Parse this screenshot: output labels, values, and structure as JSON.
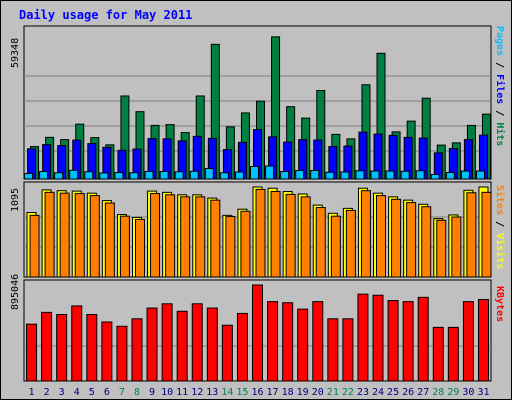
{
  "title": "Daily usage for May 2011",
  "chart_data": [
    {
      "type": "bar",
      "panel": "pages-files-hits",
      "ymax_label": "59348",
      "ylim": [
        0,
        59348
      ],
      "x": [
        "1",
        "2",
        "3",
        "4",
        "5",
        "6",
        "7",
        "8",
        "9",
        "10",
        "11",
        "12",
        "13",
        "14",
        "15",
        "16",
        "17",
        "18",
        "19",
        "20",
        "21",
        "22",
        "23",
        "24",
        "25",
        "26",
        "27",
        "28",
        "29",
        "30",
        "31"
      ],
      "weekend_days": [
        "7",
        "8",
        "14",
        "15",
        "21",
        "22",
        "28",
        "29"
      ],
      "axis_label": [
        "Pages",
        "Files",
        "Hits"
      ],
      "colors": {
        "Hits": "#008040",
        "Files": "#0000ff",
        "Pages": "#00c0ff"
      },
      "series": [
        {
          "name": "Hits",
          "values": [
            13000,
            16700,
            15800,
            22000,
            16600,
            13700,
            33300,
            27000,
            21500,
            21800,
            18600,
            33300,
            54000,
            20900,
            26500,
            31200,
            57000,
            29000,
            24400,
            35500,
            17900,
            16100,
            37800,
            50400,
            18900,
            23200,
            32400,
            13600,
            14500,
            21500,
            26000
          ]
        },
        {
          "name": "Files",
          "values": [
            12100,
            13800,
            13400,
            15600,
            14200,
            12700,
            11500,
            12000,
            16200,
            16100,
            15300,
            17100,
            16300,
            11800,
            14700,
            19800,
            16900,
            14800,
            15800,
            15600,
            13000,
            13200,
            18800,
            18000,
            17500,
            16700,
            16400,
            10500,
            12200,
            15800,
            17600
          ]
        },
        {
          "name": "Pages",
          "values": [
            2200,
            3000,
            2500,
            3500,
            2900,
            2400,
            2600,
            2500,
            3000,
            3000,
            2900,
            3100,
            4200,
            2500,
            2800,
            5000,
            5200,
            3000,
            3400,
            3400,
            2700,
            2800,
            3300,
            3200,
            3200,
            3100,
            3300,
            1800,
            2600,
            3200,
            3200
          ]
        }
      ]
    },
    {
      "type": "bar",
      "panel": "visits-sites",
      "ymax_label": "1095",
      "ylim": [
        0,
        1095
      ],
      "x": [
        "1",
        "2",
        "3",
        "4",
        "5",
        "6",
        "7",
        "8",
        "9",
        "10",
        "11",
        "12",
        "13",
        "14",
        "15",
        "16",
        "17",
        "18",
        "19",
        "20",
        "21",
        "22",
        "23",
        "24",
        "25",
        "26",
        "27",
        "28",
        "29",
        "30",
        "31"
      ],
      "axis_label": [
        "Sites",
        "Visits"
      ],
      "colors": {
        "Visits": "#ffff00",
        "Sites": "#ff8000"
      },
      "series": [
        {
          "name": "Visits",
          "values": [
            785,
            1060,
            1050,
            1045,
            1020,
            930,
            760,
            725,
            1045,
            1030,
            1000,
            1000,
            960,
            750,
            825,
            1095,
            1080,
            1040,
            1010,
            875,
            775,
            835,
            1080,
            1020,
            975,
            935,
            885,
            710,
            755,
            1055,
            1095
          ]
        },
        {
          "name": "Sites",
          "values": [
            750,
            1030,
            1020,
            1015,
            990,
            900,
            740,
            700,
            1015,
            1000,
            975,
            975,
            935,
            735,
            800,
            1065,
            1040,
            1005,
            975,
            845,
            740,
            810,
            1050,
            990,
            945,
            905,
            855,
            690,
            730,
            1025,
            1030
          ]
        }
      ]
    },
    {
      "type": "bar",
      "panel": "kbytes",
      "ymax_label": "895046",
      "ylim": [
        0,
        895046
      ],
      "x": [
        "1",
        "2",
        "3",
        "4",
        "5",
        "6",
        "7",
        "8",
        "9",
        "10",
        "11",
        "12",
        "13",
        "14",
        "15",
        "16",
        "17",
        "18",
        "19",
        "20",
        "21",
        "22",
        "23",
        "24",
        "25",
        "26",
        "27",
        "28",
        "29",
        "30",
        "31"
      ],
      "axis_label": [
        "KBytes"
      ],
      "colors": {
        "KBytes": "#ff0000"
      },
      "series": [
        {
          "name": "KBytes",
          "values": [
            530000,
            640000,
            620000,
            700000,
            620000,
            550000,
            510000,
            580000,
            680000,
            720000,
            650000,
            720000,
            680000,
            520000,
            630000,
            895000,
            740000,
            730000,
            670000,
            740000,
            580000,
            580000,
            810000,
            800000,
            750000,
            740000,
            780000,
            500000,
            500000,
            740000,
            760000
          ]
        }
      ]
    }
  ]
}
